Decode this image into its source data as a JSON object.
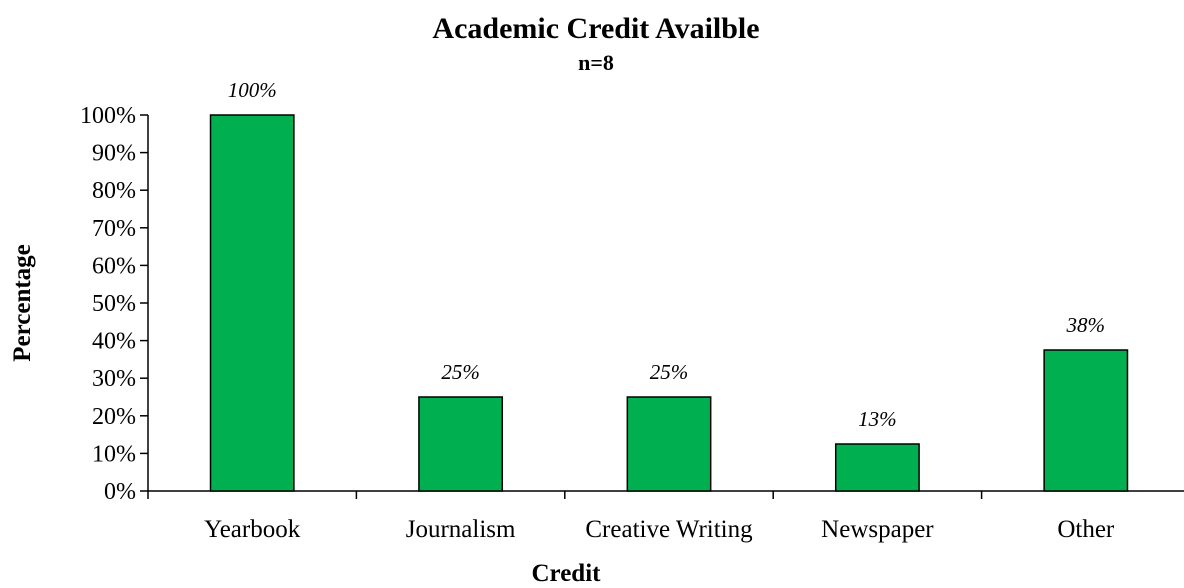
{
  "chart_data": {
    "type": "bar",
    "title": "Academic Credit Availble",
    "subtitle": "n=8",
    "xlabel": "Credit",
    "ylabel": "Percentage",
    "categories": [
      "Yearbook",
      "Journalism",
      "Creative Writing",
      "Newspaper",
      "Other"
    ],
    "values": [
      100,
      25,
      25,
      12.5,
      37.5
    ],
    "data_labels": [
      "100%",
      "25%",
      "25%",
      "13%",
      "38%"
    ],
    "ylim": [
      0,
      100
    ],
    "yticks": [
      0,
      10,
      20,
      30,
      40,
      50,
      60,
      70,
      80,
      90,
      100
    ],
    "ytick_labels": [
      "0%",
      "10%",
      "20%",
      "30%",
      "40%",
      "50%",
      "60%",
      "70%",
      "80%",
      "90%",
      "100%"
    ],
    "grid": false,
    "legend": "none",
    "bar_color": "#00B050"
  }
}
